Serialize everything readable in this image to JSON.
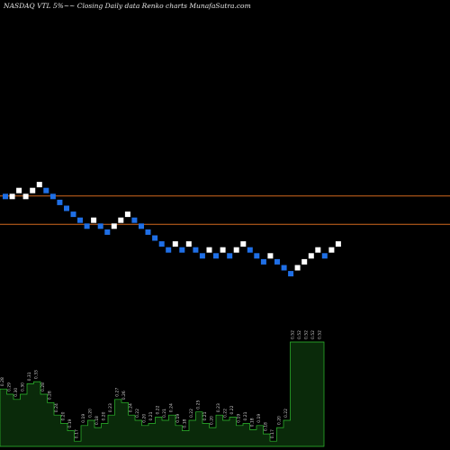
{
  "chart_data": {
    "type": "renko",
    "title": "NASDAQ VTL  5%~~ Closing Daily data  Renko  charts MunafaSutra.com",
    "colors": {
      "background": "#000000",
      "up_brick": "#ffffff",
      "down_brick": "#1f6fe6",
      "resistance_line": "#d2691e",
      "volume_fill": "#0a2a0a",
      "volume_stroke": "#2fbf2f"
    },
    "horizontal_lines": [
      {
        "level": "upper",
        "value": 2
      },
      {
        "level": "lower",
        "value": -2
      }
    ],
    "bricks": [
      {
        "dir": "down",
        "level": 2
      },
      {
        "dir": "up",
        "level": 2
      },
      {
        "dir": "up",
        "level": 3
      },
      {
        "dir": "up",
        "level": 2
      },
      {
        "dir": "up",
        "level": 3
      },
      {
        "dir": "up",
        "level": 4
      },
      {
        "dir": "down",
        "level": 3
      },
      {
        "dir": "down",
        "level": 2
      },
      {
        "dir": "down",
        "level": 1
      },
      {
        "dir": "down",
        "level": 0
      },
      {
        "dir": "down",
        "level": -1
      },
      {
        "dir": "down",
        "level": -2
      },
      {
        "dir": "down",
        "level": -3
      },
      {
        "dir": "up",
        "level": -2
      },
      {
        "dir": "down",
        "level": -3
      },
      {
        "dir": "down",
        "level": -4
      },
      {
        "dir": "up",
        "level": -3
      },
      {
        "dir": "up",
        "level": -2
      },
      {
        "dir": "up",
        "level": -1
      },
      {
        "dir": "down",
        "level": -2
      },
      {
        "dir": "down",
        "level": -3
      },
      {
        "dir": "down",
        "level": -4
      },
      {
        "dir": "down",
        "level": -5
      },
      {
        "dir": "down",
        "level": -6
      },
      {
        "dir": "down",
        "level": -7
      },
      {
        "dir": "up",
        "level": -6
      },
      {
        "dir": "down",
        "level": -7
      },
      {
        "dir": "up",
        "level": -6
      },
      {
        "dir": "down",
        "level": -7
      },
      {
        "dir": "down",
        "level": -8
      },
      {
        "dir": "up",
        "level": -7
      },
      {
        "dir": "down",
        "level": -8
      },
      {
        "dir": "up",
        "level": -7
      },
      {
        "dir": "down",
        "level": -8
      },
      {
        "dir": "up",
        "level": -7
      },
      {
        "dir": "up",
        "level": -6
      },
      {
        "dir": "down",
        "level": -7
      },
      {
        "dir": "down",
        "level": -8
      },
      {
        "dir": "down",
        "level": -9
      },
      {
        "dir": "up",
        "level": -8
      },
      {
        "dir": "down",
        "level": -9
      },
      {
        "dir": "down",
        "level": -10
      },
      {
        "dir": "down",
        "level": -11
      },
      {
        "dir": "up",
        "level": -10
      },
      {
        "dir": "up",
        "level": -9
      },
      {
        "dir": "up",
        "level": -8
      },
      {
        "dir": "up",
        "level": -7
      },
      {
        "dir": "down",
        "level": -8
      },
      {
        "dir": "up",
        "level": -7
      },
      {
        "dir": "up",
        "level": -6
      }
    ],
    "volume": [
      {
        "value": 0.55,
        "label": "0.28"
      },
      {
        "value": 0.5,
        "label": "0.29"
      },
      {
        "value": 0.45,
        "label": "0.30"
      },
      {
        "value": 0.5,
        "label": "0.30"
      },
      {
        "value": 0.6,
        "label": "0.31"
      },
      {
        "value": 0.62,
        "label": "0.33"
      },
      {
        "value": 0.5,
        "label": "0.28"
      },
      {
        "value": 0.42,
        "label": "0.28"
      },
      {
        "value": 0.3,
        "label": "0.24"
      },
      {
        "value": 0.22,
        "label": "0.20"
      },
      {
        "value": 0.15,
        "label": "0.19"
      },
      {
        "value": 0.05,
        "label": "0.17"
      },
      {
        "value": 0.2,
        "label": "0.19"
      },
      {
        "value": 0.25,
        "label": "0.20"
      },
      {
        "value": 0.18,
        "label": "0.18"
      },
      {
        "value": 0.22,
        "label": "0.20"
      },
      {
        "value": 0.3,
        "label": "0.23"
      },
      {
        "value": 0.45,
        "label": "0.27"
      },
      {
        "value": 0.42,
        "label": "0.26"
      },
      {
        "value": 0.3,
        "label": "0.24"
      },
      {
        "value": 0.25,
        "label": "0.22"
      },
      {
        "value": 0.2,
        "label": "0.20"
      },
      {
        "value": 0.22,
        "label": "0.21"
      },
      {
        "value": 0.28,
        "label": "0.22"
      },
      {
        "value": 0.25,
        "label": "0.21"
      },
      {
        "value": 0.3,
        "label": "0.24"
      },
      {
        "value": 0.2,
        "label": "0.19"
      },
      {
        "value": 0.15,
        "label": "0.18"
      },
      {
        "value": 0.25,
        "label": "0.22"
      },
      {
        "value": 0.33,
        "label": "0.25"
      },
      {
        "value": 0.22,
        "label": "0.21"
      },
      {
        "value": 0.18,
        "label": "0.20"
      },
      {
        "value": 0.3,
        "label": "0.23"
      },
      {
        "value": 0.25,
        "label": "0.22"
      },
      {
        "value": 0.28,
        "label": "0.22"
      },
      {
        "value": 0.2,
        "label": "0.19"
      },
      {
        "value": 0.22,
        "label": "0.21"
      },
      {
        "value": 0.16,
        "label": "0.18"
      },
      {
        "value": 0.2,
        "label": "0.19"
      },
      {
        "value": 0.12,
        "label": "0.18"
      },
      {
        "value": 0.05,
        "label": "0.17"
      },
      {
        "value": 0.18,
        "label": "0.20"
      },
      {
        "value": 0.25,
        "label": "0.22"
      },
      {
        "value": 1.0,
        "label": "0.52"
      },
      {
        "value": 1.0,
        "label": "0.52"
      },
      {
        "value": 1.0,
        "label": "0.52"
      },
      {
        "value": 1.0,
        "label": "0.52"
      },
      {
        "value": 1.0,
        "label": "0.52"
      }
    ]
  }
}
